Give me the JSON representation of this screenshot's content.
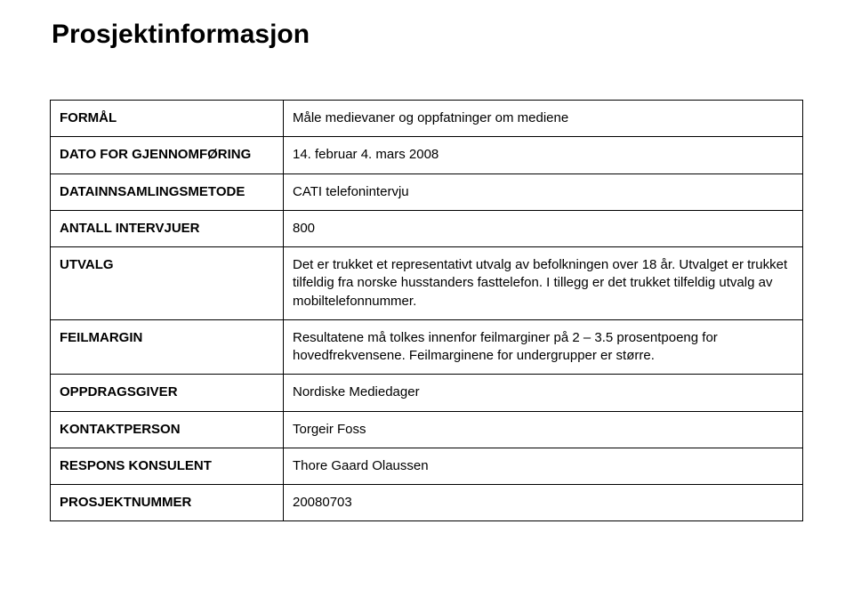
{
  "title": "Prosjektinformasjon",
  "rows": {
    "formal": {
      "label": "FORMÅL",
      "value": "Måle medievaner og oppfatninger om mediene"
    },
    "dato": {
      "label": "DATO FOR GJENNOMFØRING",
      "value": "14. februar 4. mars 2008"
    },
    "metode": {
      "label": "DATAINNSAMLINGSMETODE",
      "value": "CATI telefonintervju"
    },
    "antall": {
      "label": "ANTALL INTERVJUER",
      "value": "800"
    },
    "utvalg": {
      "label": "UTVALG",
      "value": "Det er trukket et representativt utvalg av befolkningen over 18 år. Utvalget er trukket tilfeldig fra norske husstanders fasttelefon. I tillegg er det trukket tilfeldig utvalg av mobiltelefonnummer."
    },
    "feilmargin": {
      "label": "FEILMARGIN",
      "value": "Resultatene må tolkes innenfor feilmarginer på 2 – 3.5 prosentpoeng for hovedfrekvensene. Feilmarginene for undergrupper er større."
    },
    "oppdrag": {
      "label": "OPPDRAGSGIVER",
      "value": "Nordiske Mediedager"
    },
    "kontakt": {
      "label": "KONTAKTPERSON",
      "value": "Torgeir Foss"
    },
    "konsulent": {
      "label": "RESPONS KONSULENT",
      "value": "Thore Gaard Olaussen"
    },
    "prosjektnr": {
      "label": "PROSJEKTNUMMER",
      "value": "20080703"
    }
  }
}
